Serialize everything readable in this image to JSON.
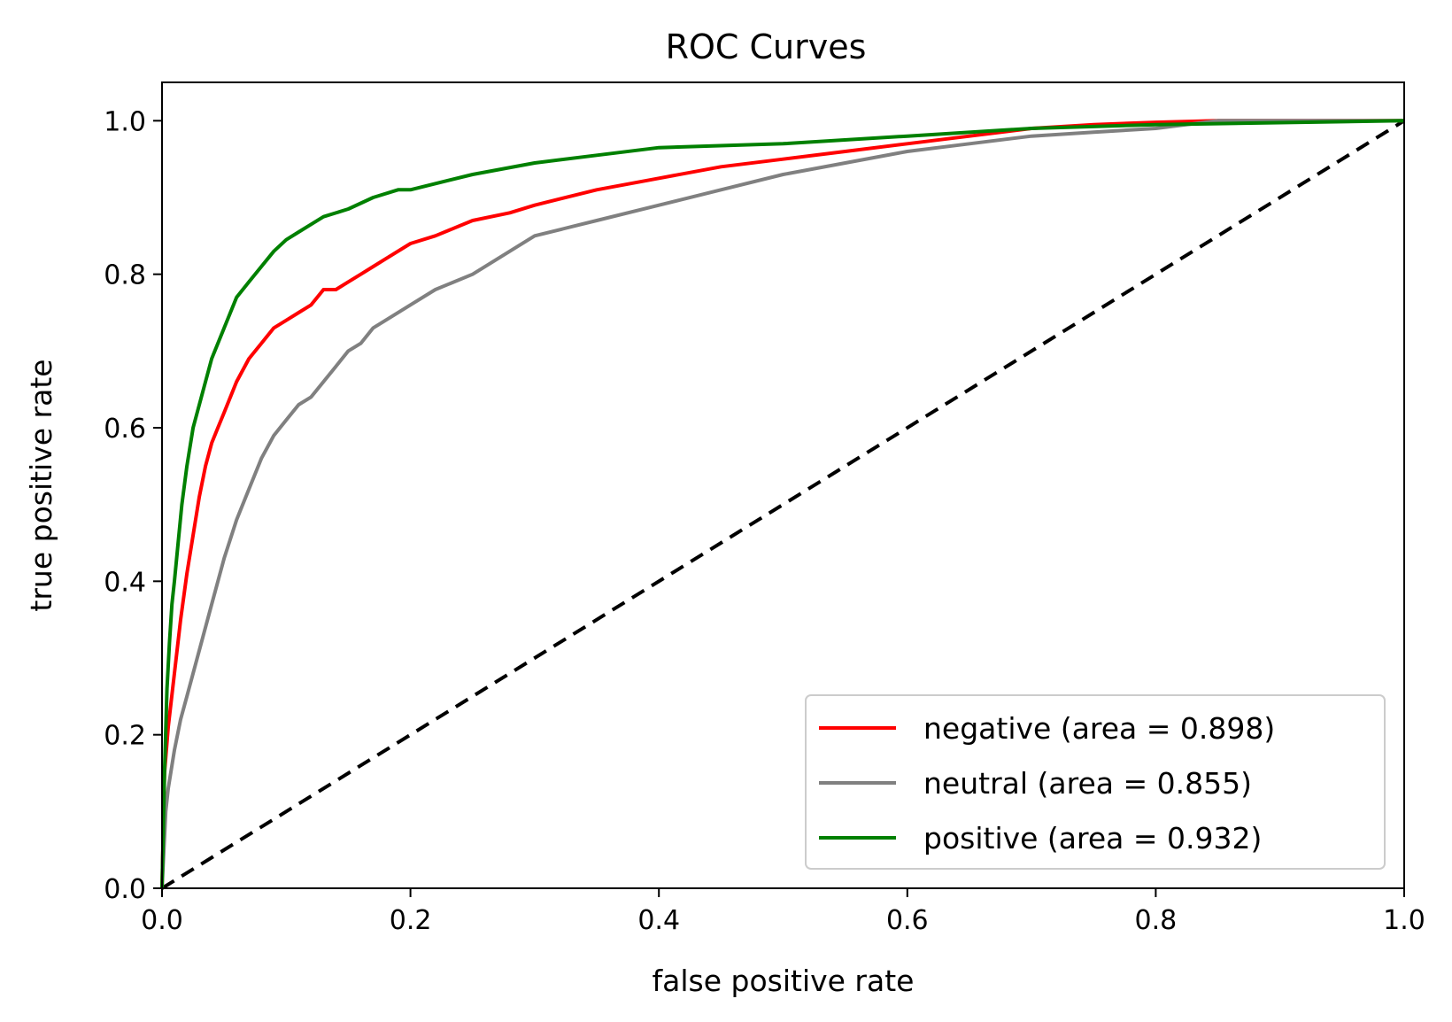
{
  "chart_data": {
    "type": "line",
    "title": "ROC Curves",
    "xlabel": "false positive rate",
    "ylabel": "true positive rate",
    "xlim": [
      0.0,
      1.0
    ],
    "ylim": [
      0.0,
      1.05
    ],
    "grid": false,
    "legend_position": "lower right",
    "xticks": [
      0.0,
      0.2,
      0.4,
      0.6,
      0.8,
      1.0
    ],
    "xtick_labels": [
      "0.0",
      "0.2",
      "0.4",
      "0.6",
      "0.8",
      "1.0"
    ],
    "yticks": [
      0.0,
      0.2,
      0.4,
      0.6,
      0.8,
      1.0
    ],
    "ytick_labels": [
      "0.0",
      "0.2",
      "0.4",
      "0.6",
      "0.8",
      "1.0"
    ],
    "series": [
      {
        "name": "negative (area = 0.898)",
        "color": "#ff0000",
        "x": [
          0.0,
          0.002,
          0.005,
          0.01,
          0.015,
          0.02,
          0.025,
          0.03,
          0.035,
          0.04,
          0.045,
          0.05,
          0.06,
          0.07,
          0.08,
          0.09,
          0.1,
          0.11,
          0.12,
          0.13,
          0.14,
          0.15,
          0.16,
          0.17,
          0.18,
          0.2,
          0.22,
          0.25,
          0.28,
          0.3,
          0.35,
          0.4,
          0.45,
          0.5,
          0.55,
          0.6,
          0.65,
          0.7,
          0.75,
          0.8,
          0.85,
          0.9,
          1.0
        ],
        "y": [
          0.0,
          0.15,
          0.21,
          0.28,
          0.35,
          0.41,
          0.46,
          0.51,
          0.55,
          0.58,
          0.6,
          0.62,
          0.66,
          0.69,
          0.71,
          0.73,
          0.74,
          0.75,
          0.76,
          0.78,
          0.78,
          0.79,
          0.8,
          0.81,
          0.82,
          0.84,
          0.85,
          0.87,
          0.88,
          0.89,
          0.91,
          0.925,
          0.94,
          0.95,
          0.96,
          0.97,
          0.98,
          0.99,
          0.995,
          0.998,
          1.0,
          1.0,
          1.0
        ]
      },
      {
        "name": "neutral (area = 0.855)",
        "color": "#808080",
        "x": [
          0.0,
          0.003,
          0.005,
          0.01,
          0.015,
          0.02,
          0.025,
          0.03,
          0.035,
          0.04,
          0.05,
          0.06,
          0.07,
          0.08,
          0.09,
          0.1,
          0.11,
          0.12,
          0.13,
          0.14,
          0.15,
          0.16,
          0.17,
          0.18,
          0.2,
          0.22,
          0.25,
          0.28,
          0.3,
          0.35,
          0.4,
          0.45,
          0.5,
          0.55,
          0.6,
          0.65,
          0.7,
          0.75,
          0.8,
          0.85,
          1.0
        ],
        "y": [
          0.0,
          0.1,
          0.13,
          0.18,
          0.22,
          0.25,
          0.28,
          0.31,
          0.34,
          0.37,
          0.43,
          0.48,
          0.52,
          0.56,
          0.59,
          0.61,
          0.63,
          0.64,
          0.66,
          0.68,
          0.7,
          0.71,
          0.73,
          0.74,
          0.76,
          0.78,
          0.8,
          0.83,
          0.85,
          0.87,
          0.89,
          0.91,
          0.93,
          0.945,
          0.96,
          0.97,
          0.98,
          0.985,
          0.99,
          1.0,
          1.0
        ]
      },
      {
        "name": "positive (area = 0.932)",
        "color": "#008000",
        "x": [
          0.0,
          0.002,
          0.004,
          0.006,
          0.008,
          0.01,
          0.013,
          0.016,
          0.02,
          0.025,
          0.03,
          0.035,
          0.04,
          0.045,
          0.05,
          0.055,
          0.06,
          0.065,
          0.07,
          0.08,
          0.09,
          0.1,
          0.11,
          0.12,
          0.13,
          0.15,
          0.17,
          0.19,
          0.2,
          0.25,
          0.3,
          0.35,
          0.4,
          0.5,
          0.6,
          0.7,
          0.8,
          1.0
        ],
        "y": [
          0.0,
          0.15,
          0.26,
          0.32,
          0.37,
          0.4,
          0.45,
          0.5,
          0.55,
          0.6,
          0.63,
          0.66,
          0.69,
          0.71,
          0.73,
          0.75,
          0.77,
          0.78,
          0.79,
          0.81,
          0.83,
          0.845,
          0.855,
          0.865,
          0.875,
          0.885,
          0.9,
          0.91,
          0.91,
          0.93,
          0.945,
          0.955,
          0.965,
          0.97,
          0.98,
          0.99,
          0.995,
          1.0
        ]
      }
    ],
    "reference_line": {
      "x": [
        0.0,
        1.0
      ],
      "y": [
        0.0,
        1.0
      ],
      "color": "#000000",
      "style": "dashed"
    }
  }
}
